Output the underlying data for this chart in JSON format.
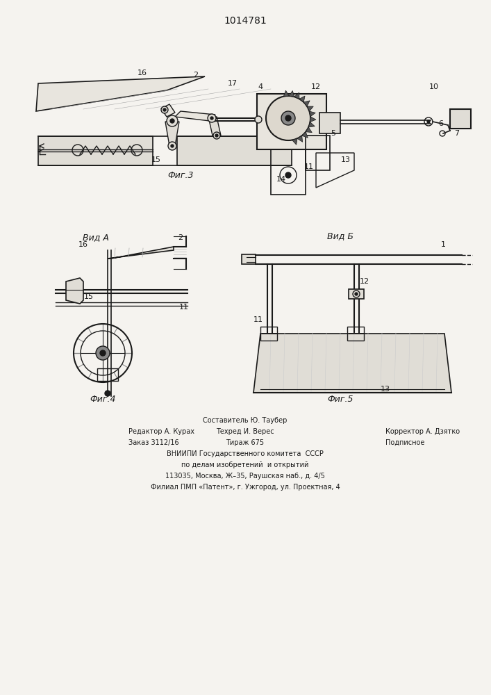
{
  "title": "1014781",
  "bg_color": "#f5f3ef",
  "line_color": "#1a1a1a",
  "fig3_caption": "Фиг.3",
  "fig4_caption": "Фиг.4",
  "fig5_caption": "Фиг.5",
  "vid_a_label": "Вид А",
  "vid_b_label": "Вид Б",
  "footer": [
    [
      "",
      "Составитель Ю. Таубер",
      ""
    ],
    [
      "Редактор А. Курах",
      "Техред И. Верес",
      "Корректор А. Дзятко"
    ],
    [
      "Заказ 3112/16",
      "Тираж 675",
      "Подписное"
    ],
    [
      "",
      "ВНИИПИ Государственного комитета  СССР",
      ""
    ],
    [
      "",
      "по делам изобретений  и открытий",
      ""
    ],
    [
      "",
      "113035, Москва, Ж–35, Раушская наб., д. 4/5",
      ""
    ],
    [
      "",
      "Филиал ПМП «Патент», г. Ужгород, ул. Проектная, 4",
      ""
    ]
  ]
}
